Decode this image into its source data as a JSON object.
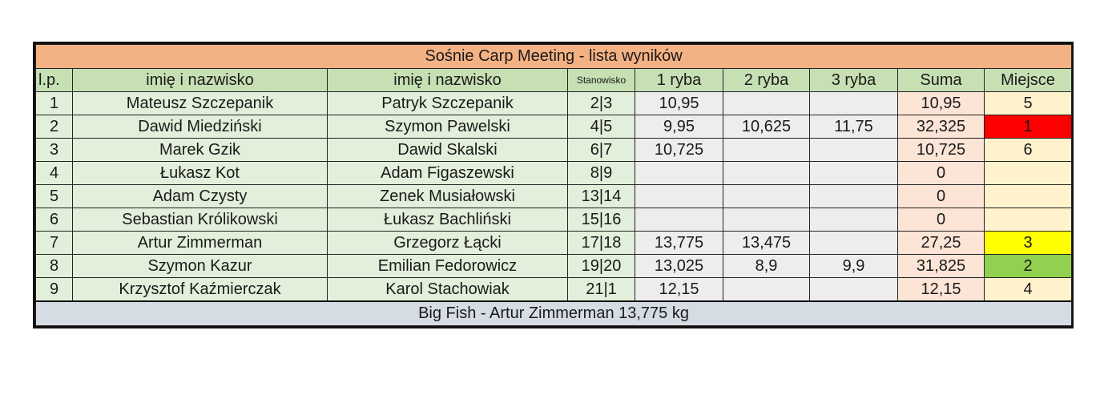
{
  "title": "Sośnie Carp Meeting - lista wyników",
  "headers": {
    "lp": "l.p.",
    "name1": "imię i nazwisko",
    "name2": "imię i nazwisko",
    "stanowisko": "Stanowisko",
    "ryba1": "1 ryba",
    "ryba2": "2 ryba",
    "ryba3": "3 ryba",
    "suma": "Suma",
    "miejsce": "Miejsce"
  },
  "rows": [
    {
      "lp": "1",
      "name1": "Mateusz Szczepanik",
      "name2": "Patryk Szczepanik",
      "stanowisko": "2|3",
      "ryba1": "10,95",
      "ryba2": "",
      "ryba3": "",
      "suma": "10,95",
      "miejsce": "5",
      "place_color": "#fff2cc"
    },
    {
      "lp": "2",
      "name1": "Dawid Miedziński",
      "name2": "Szymon Pawelski",
      "stanowisko": "4|5",
      "ryba1": "9,95",
      "ryba2": "10,625",
      "ryba3": "11,75",
      "suma": "32,325",
      "miejsce": "1",
      "place_color": "#ff0000"
    },
    {
      "lp": "3",
      "name1": "Marek Gzik",
      "name2": "Dawid Skalski",
      "stanowisko": "6|7",
      "ryba1": "10,725",
      "ryba2": "",
      "ryba3": "",
      "suma": "10,725",
      "miejsce": "6",
      "place_color": "#fff2cc"
    },
    {
      "lp": "4",
      "name1": "Łukasz Kot",
      "name2": "Adam Figaszewski",
      "stanowisko": "8|9",
      "ryba1": "",
      "ryba2": "",
      "ryba3": "",
      "suma": "0",
      "miejsce": "",
      "place_color": "#fff2cc"
    },
    {
      "lp": "5",
      "name1": "Adam Czysty",
      "name2": "Zenek Musiałowski",
      "stanowisko": "13|14",
      "ryba1": "",
      "ryba2": "",
      "ryba3": "",
      "suma": "0",
      "miejsce": "",
      "place_color": "#fff2cc"
    },
    {
      "lp": "6",
      "name1": "Sebastian Królikowski",
      "name2": "Łukasz Bachliński",
      "stanowisko": "15|16",
      "ryba1": "",
      "ryba2": "",
      "ryba3": "",
      "suma": "0",
      "miejsce": "",
      "place_color": "#fff2cc"
    },
    {
      "lp": "7",
      "name1": "Artur Zimmerman",
      "name2": "Grzegorz Łącki",
      "stanowisko": "17|18",
      "ryba1": "13,775",
      "ryba2": "13,475",
      "ryba3": "",
      "suma": "27,25",
      "miejsce": "3",
      "place_color": "#ffff00"
    },
    {
      "lp": "8",
      "name1": "Szymon Kazur",
      "name2": "Emilian Fedorowicz",
      "stanowisko": "19|20",
      "ryba1": "13,025",
      "ryba2": "8,9",
      "ryba3": "9,9",
      "suma": "31,825",
      "miejsce": "2",
      "place_color": "#92d050"
    },
    {
      "lp": "9",
      "name1": "Krzysztof Kaźmierczak",
      "name2": "Karol Stachowiak",
      "stanowisko": "21|1",
      "ryba1": "12,15",
      "ryba2": "",
      "ryba3": "",
      "suma": "12,15",
      "miejsce": "4",
      "place_color": "#fff2cc"
    }
  ],
  "footer": "Big Fish - Artur Zimmerman 13,775 kg"
}
